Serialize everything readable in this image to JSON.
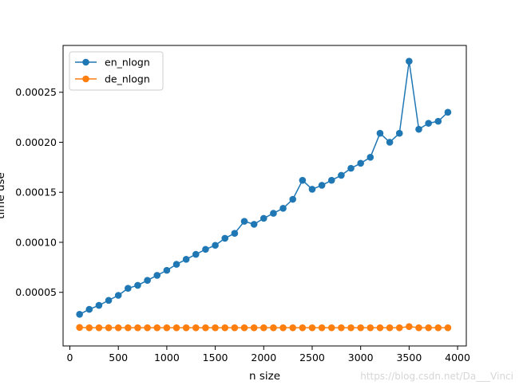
{
  "chart_data": {
    "type": "line",
    "title": "",
    "xlabel": "n size",
    "ylabel": "time use",
    "xlim": [
      -70,
      4090
    ],
    "ylim": [
      -3.6e-06,
      0.0002968
    ],
    "xticks": [
      0,
      500,
      1000,
      1500,
      2000,
      2500,
      3000,
      3500,
      4000
    ],
    "xtick_labels": [
      "0",
      "500",
      "1000",
      "1500",
      "2000",
      "2500",
      "3000",
      "3500",
      "4000"
    ],
    "yticks": [
      5e-05,
      0.0001,
      0.00015,
      0.0002,
      0.00025
    ],
    "ytick_labels": [
      "0.00005",
      "0.00010",
      "0.00015",
      "0.00020",
      "0.00025"
    ],
    "grid": false,
    "legend_position": "upper-left",
    "x": [
      100,
      200,
      300,
      400,
      500,
      600,
      700,
      800,
      900,
      1000,
      1100,
      1200,
      1300,
      1400,
      1500,
      1600,
      1700,
      1800,
      1900,
      2000,
      2100,
      2200,
      2300,
      2400,
      2500,
      2600,
      2700,
      2800,
      2900,
      3000,
      3100,
      3200,
      3300,
      3400,
      3500,
      3600,
      3700,
      3800,
      3900
    ],
    "series": [
      {
        "name": "en_nlogn",
        "color": "#1f77b4",
        "values": [
          2.8e-05,
          3.3e-05,
          3.7e-05,
          4.2e-05,
          4.7e-05,
          5.4e-05,
          5.7e-05,
          6.2e-05,
          6.7e-05,
          7.2e-05,
          7.8e-05,
          8.3e-05,
          8.8e-05,
          9.3e-05,
          9.7e-05,
          0.000104,
          0.000109,
          0.000121,
          0.000118,
          0.000124,
          0.000129,
          0.000134,
          0.000143,
          0.000162,
          0.000153,
          0.000157,
          0.000162,
          0.000167,
          0.000174,
          0.000179,
          0.000185,
          0.000209,
          0.0002,
          0.000209,
          0.000281,
          0.000213,
          0.000219,
          0.000221,
          0.00023
        ]
      },
      {
        "name": "de_nlogn",
        "color": "#ff7f0e",
        "values": [
          1.49e-05,
          1.46e-05,
          1.46e-05,
          1.46e-05,
          1.46e-05,
          1.46e-05,
          1.46e-05,
          1.46e-05,
          1.46e-05,
          1.46e-05,
          1.46e-05,
          1.46e-05,
          1.46e-05,
          1.46e-05,
          1.46e-05,
          1.46e-05,
          1.46e-05,
          1.46e-05,
          1.46e-05,
          1.46e-05,
          1.46e-05,
          1.46e-05,
          1.46e-05,
          1.46e-05,
          1.46e-05,
          1.46e-05,
          1.46e-05,
          1.46e-05,
          1.46e-05,
          1.46e-05,
          1.46e-05,
          1.46e-05,
          1.46e-05,
          1.46e-05,
          1.58e-05,
          1.46e-05,
          1.46e-05,
          1.46e-05,
          1.46e-05
        ]
      }
    ]
  },
  "watermark": "https://blog.csdn.net/Da___Vinci"
}
